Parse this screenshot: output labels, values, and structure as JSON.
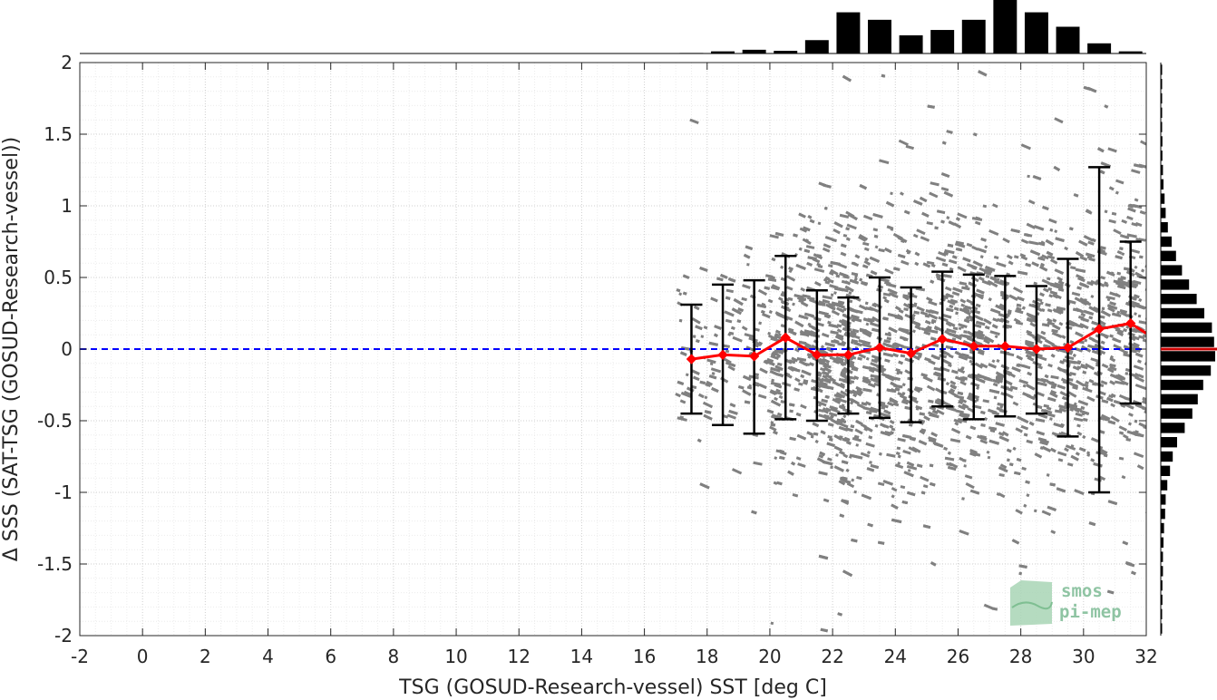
{
  "chart_data": {
    "type": "scatter",
    "xlabel": "TSG (GOSUD-Research-vessel) SST [deg C]",
    "ylabel": "Δ SSS (SAT-TSG (GOSUD-Research-vessel))",
    "xlim": [
      -2,
      32
    ],
    "ylim": [
      -2,
      2
    ],
    "xticks": [
      -2,
      0,
      2,
      4,
      6,
      8,
      10,
      12,
      14,
      16,
      18,
      20,
      22,
      24,
      26,
      28,
      30,
      32
    ],
    "yticks": [
      -2,
      -1.5,
      -1,
      -0.5,
      0,
      0.5,
      1,
      1.5,
      2
    ],
    "grid": true,
    "reference_line": {
      "y": 0,
      "color": "#0000ff",
      "style": "dashed"
    },
    "scatter_color": "#808080",
    "binned_mean": {
      "color": "#ff0000",
      "x": [
        17.5,
        18.5,
        19.5,
        20.5,
        21.5,
        22.5,
        23.5,
        24.5,
        25.5,
        26.5,
        27.5,
        28.5,
        29.5,
        30.5,
        31.5,
        32.0
      ],
      "mean": [
        -0.07,
        -0.04,
        -0.05,
        0.08,
        -0.04,
        -0.04,
        0.01,
        -0.03,
        0.07,
        0.02,
        0.02,
        0.0,
        0.01,
        0.14,
        0.18,
        0.11
      ],
      "err_lower": [
        -0.45,
        -0.53,
        -0.59,
        -0.49,
        -0.5,
        -0.45,
        -0.48,
        -0.51,
        -0.4,
        -0.49,
        -0.47,
        -0.45,
        -0.61,
        -1.0,
        -0.38,
        null
      ],
      "err_upper": [
        0.31,
        0.45,
        0.48,
        0.65,
        0.41,
        0.36,
        0.5,
        0.43,
        0.54,
        0.52,
        0.51,
        0.44,
        0.63,
        1.27,
        0.75,
        null
      ]
    },
    "top_histogram": {
      "bin_centers": [
        17.5,
        18.5,
        19.5,
        20.5,
        21.5,
        22.5,
        23.5,
        24.5,
        25.5,
        26.5,
        27.5,
        28.5,
        29.5,
        30.5,
        31.5
      ],
      "relative_counts": [
        0.01,
        0.04,
        0.07,
        0.05,
        0.25,
        0.77,
        0.63,
        0.34,
        0.44,
        0.63,
        1.0,
        0.77,
        0.5,
        0.19,
        0.04
      ]
    },
    "right_histogram": {
      "bin_centers": [
        -1.95,
        -1.85,
        -1.75,
        -1.65,
        -1.55,
        -1.45,
        -1.35,
        -1.25,
        -1.15,
        -1.05,
        -0.95,
        -0.85,
        -0.75,
        -0.65,
        -0.55,
        -0.45,
        -0.35,
        -0.25,
        -0.15,
        -0.05,
        0.05,
        0.15,
        0.25,
        0.35,
        0.45,
        0.55,
        0.65,
        0.75,
        0.85,
        0.95,
        1.05,
        1.15,
        1.25,
        1.35,
        1.45,
        1.55,
        1.65,
        1.75,
        1.85,
        1.95
      ],
      "relative_counts": [
        0.02,
        0.02,
        0.03,
        0.03,
        0.04,
        0.04,
        0.05,
        0.06,
        0.08,
        0.09,
        0.12,
        0.17,
        0.22,
        0.3,
        0.44,
        0.58,
        0.68,
        0.78,
        0.92,
        1.0,
        0.98,
        0.94,
        0.8,
        0.66,
        0.52,
        0.39,
        0.28,
        0.2,
        0.13,
        0.09,
        0.07,
        0.05,
        0.04,
        0.03,
        0.03,
        0.02,
        0.02,
        0.02,
        0.02,
        0.02
      ],
      "mean_marker": {
        "y": 0.0,
        "color": "#cc0000"
      }
    }
  },
  "logo": {
    "line1": "smos",
    "line2": "pi-mep"
  }
}
